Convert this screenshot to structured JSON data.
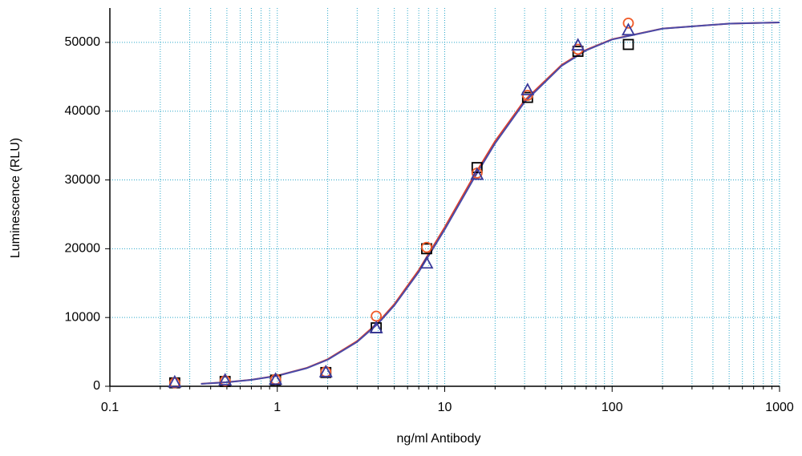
{
  "chart_data": {
    "type": "scatter",
    "x_label": "ng/ml Antibody",
    "y_label": "Luminescence (RLU)",
    "xlog": true,
    "xlim": [
      0.1,
      1000
    ],
    "ylim": [
      0,
      55000
    ],
    "xticks": [
      0.1,
      1,
      10,
      100,
      1000
    ],
    "minor_xticks": [
      0.2,
      0.3,
      0.4,
      0.5,
      0.6,
      0.7,
      0.8,
      0.9,
      2,
      3,
      4,
      5,
      6,
      7,
      8,
      9,
      20,
      30,
      40,
      50,
      60,
      70,
      80,
      90,
      200,
      300,
      400,
      500,
      600,
      700,
      800,
      900
    ],
    "yticks": [
      0,
      10000,
      20000,
      30000,
      40000,
      50000
    ],
    "grid": true,
    "x": [
      0.244,
      0.488,
      0.977,
      1.95,
      3.9,
      7.8,
      15.6,
      31.25,
      62.5,
      125
    ],
    "series": [
      {
        "marker": "square",
        "color": "#000000",
        "values": [
          500,
          700,
          900,
          2000,
          8500,
          20000,
          31800,
          42000,
          48700,
          49700
        ]
      },
      {
        "marker": "circle",
        "color": "#f05a28",
        "values": [
          500,
          800,
          1000,
          2100,
          10200,
          20200,
          31000,
          42300,
          49000,
          52800
        ]
      },
      {
        "marker": "triangle",
        "color": "#3a3a9a",
        "values": [
          500,
          800,
          900,
          2000,
          8400,
          17800,
          30700,
          43000,
          49500,
          51700
        ]
      }
    ],
    "curves": [
      {
        "color": "#e0402a",
        "x": [
          0.35,
          0.5,
          0.7,
          1,
          1.5,
          2,
          3,
          4,
          5,
          7,
          10,
          15,
          20,
          30,
          50,
          70,
          100,
          200,
          500,
          1000
        ],
        "values": [
          361,
          595,
          948,
          1550,
          2680,
          3930,
          6575,
          9280,
          11940,
          16890,
          23110,
          30640,
          35640,
          41570,
          46740,
          48930,
          50460,
          52010,
          52730,
          52900
        ]
      },
      {
        "color": "#4a4aa8",
        "x": [
          0.35,
          0.5,
          0.7,
          1,
          1.5,
          2,
          3,
          4,
          5,
          7,
          10,
          15,
          20,
          30,
          50,
          70,
          100,
          200,
          500,
          1000
        ],
        "values": [
          350,
          580,
          930,
          1520,
          2630,
          3860,
          6460,
          9120,
          11750,
          16640,
          22800,
          30300,
          35330,
          41330,
          46600,
          48850,
          50420,
          52000,
          52730,
          52900
        ]
      }
    ]
  }
}
